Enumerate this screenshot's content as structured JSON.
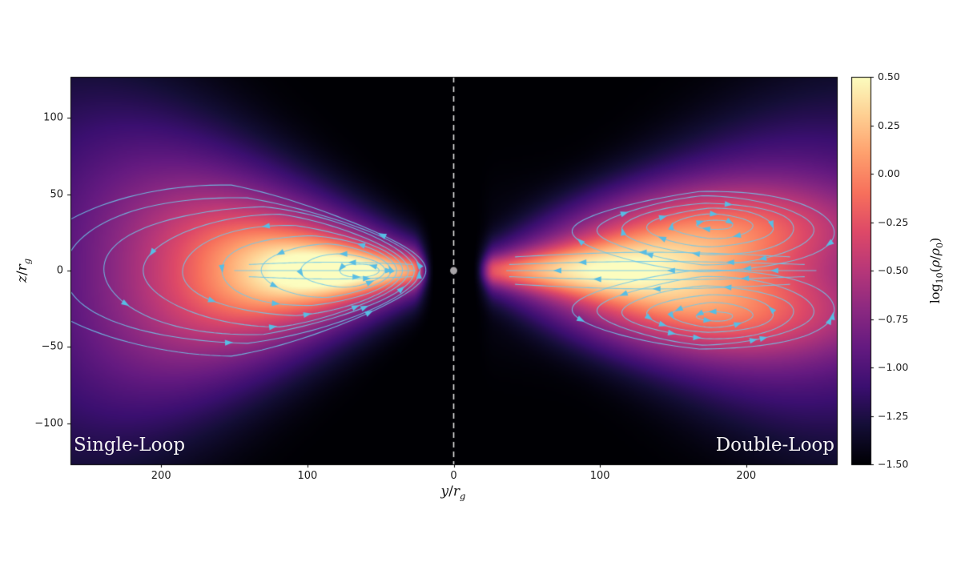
{
  "figure": {
    "background": "#ffffff",
    "plot_background": "#000000"
  },
  "chart_data": {
    "type": "heatmap",
    "title": "",
    "xlabel": "y/r_g",
    "ylabel": "z/r_g",
    "x_range": [
      -262,
      262
    ],
    "z_range": [
      -127,
      127
    ],
    "x_ticks": [
      {
        "value": -200,
        "label": "200"
      },
      {
        "value": -100,
        "label": "100"
      },
      {
        "value": 0,
        "label": "0"
      },
      {
        "value": 100,
        "label": "100"
      },
      {
        "value": 200,
        "label": "200"
      }
    ],
    "z_ticks": [
      {
        "value": 100,
        "label": "100"
      },
      {
        "value": 50,
        "label": "50"
      },
      {
        "value": 0,
        "label": "0"
      },
      {
        "value": -50,
        "label": "−50"
      },
      {
        "value": -100,
        "label": "−100"
      }
    ],
    "panels": [
      {
        "side": "left",
        "label": "Single-Loop",
        "vortices": [
          {
            "y": -108,
            "z": 0
          }
        ]
      },
      {
        "side": "right",
        "label": "Double-Loop",
        "vortices": [
          {
            "y": 178,
            "z": 30
          },
          {
            "y": 178,
            "z": -30
          }
        ]
      }
    ],
    "colorbar": {
      "label": "log_10(ρ/ρ_0)",
      "min": -1.5,
      "max": 0.5,
      "ticks": [
        {
          "value": 0.5,
          "label": "0.50"
        },
        {
          "value": 0.25,
          "label": "0.25"
        },
        {
          "value": 0.0,
          "label": "0.00"
        },
        {
          "value": -0.25,
          "label": "−0.25"
        },
        {
          "value": -0.5,
          "label": "−0.50"
        },
        {
          "value": -0.75,
          "label": "−0.75"
        },
        {
          "value": -1.0,
          "label": "−1.00"
        },
        {
          "value": -1.25,
          "label": "−1.25"
        },
        {
          "value": -1.5,
          "label": "−1.50"
        }
      ]
    },
    "colormap": {
      "name": "magma",
      "stops": [
        [
          0.0,
          "#000004"
        ],
        [
          0.1,
          "#140e36"
        ],
        [
          0.2,
          "#3b0f70"
        ],
        [
          0.3,
          "#641a80"
        ],
        [
          0.4,
          "#8c2981"
        ],
        [
          0.5,
          "#b73779"
        ],
        [
          0.6,
          "#de4968"
        ],
        [
          0.7,
          "#f7705c"
        ],
        [
          0.8,
          "#fe9f6d"
        ],
        [
          0.9,
          "#fecf92"
        ],
        [
          1.0,
          "#fcfdbf"
        ]
      ]
    },
    "streamline_color": "#6ec8eb",
    "arrow_color": "#58bde4",
    "center_marker": {
      "y": 0,
      "z": 0,
      "color": "#a8a4a8"
    },
    "axis_line": {
      "y": 0,
      "style": "dashed",
      "color": "#ececec"
    }
  }
}
